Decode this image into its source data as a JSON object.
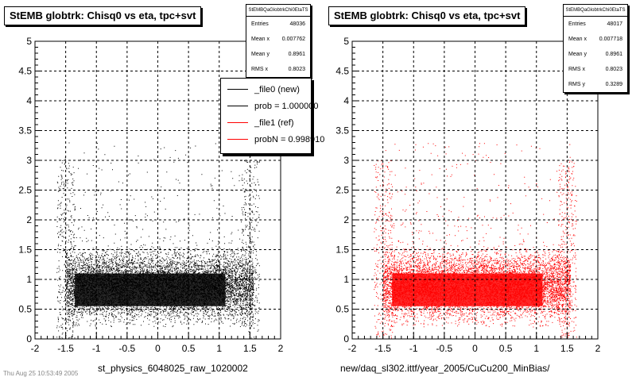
{
  "chart_data": [
    {
      "type": "scatter",
      "title": "StEMB globtrk: Chisq0 vs eta, tpc+svt",
      "xlabel": "st_physics_6048025_raw_1020002",
      "ylabel": "",
      "xlim": [
        -2,
        2
      ],
      "ylim": [
        0,
        5
      ],
      "xticks": [
        "-2",
        "-1.5",
        "-1",
        "-0.5",
        "0",
        "0.5",
        "1",
        "1.5",
        "2"
      ],
      "yticks": [
        "0",
        "0.5",
        "1",
        "1.5",
        "2",
        "2.5",
        "3",
        "3.5",
        "4",
        "4.5",
        "5"
      ],
      "grid": true,
      "marker_color": "#000000",
      "distribution": {
        "eta_core": [
          -1.5,
          1.55
        ],
        "chisq_dense": [
          0.35,
          1.45
        ],
        "chisq_mean": 0.8961
      },
      "stats": {
        "name": "StEMBQaGlobtrkChi0EtaTS",
        "rows": [
          {
            "label": "Entries",
            "value": "48036"
          },
          {
            "label": "Mean x",
            "value": "0.007762"
          },
          {
            "label": "Mean y",
            "value": "0.8961"
          },
          {
            "label": "RMS x",
            "value": "0.8023"
          }
        ]
      },
      "legend": {
        "position": "top-right",
        "entries": [
          {
            "label": "_file0 (new)",
            "color": "#000000"
          },
          {
            "label": "prob = 1.000000",
            "color": "#000000"
          },
          {
            "label": "_file1 (ref)",
            "color": "#ff0000"
          },
          {
            "label": "probN = 0.998910",
            "color": "#ff0000"
          }
        ]
      }
    },
    {
      "type": "scatter",
      "title": "StEMB globtrk: Chisq0 vs eta, tpc+svt",
      "xlabel": "new/daq_sl302.ittf/year_2005/CuCu200_MinBias/",
      "ylabel": "",
      "xlim": [
        -2,
        2
      ],
      "ylim": [
        0,
        5
      ],
      "xticks": [
        "-2",
        "-1.5",
        "-1",
        "-0.5",
        "0",
        "0.5",
        "1",
        "1.5",
        "2"
      ],
      "yticks": [
        "0",
        "0.5",
        "1",
        "1.5",
        "2",
        "2.5",
        "3",
        "3.5",
        "4",
        "4.5",
        "5"
      ],
      "grid": true,
      "marker_color": "#ff0000",
      "distribution": {
        "eta_core": [
          -1.5,
          1.55
        ],
        "chisq_dense": [
          0.35,
          1.45
        ],
        "chisq_mean": 0.8961
      },
      "stats": {
        "name": "StEMBQaGlobtrkChi0EtaTS",
        "rows": [
          {
            "label": "Entries",
            "value": "48017"
          },
          {
            "label": "Mean x",
            "value": "0.007718"
          },
          {
            "label": "Mean y",
            "value": "0.8961"
          },
          {
            "label": "RMS x",
            "value": "0.8023"
          },
          {
            "label": "RMS y",
            "value": "0.3289"
          }
        ]
      }
    }
  ],
  "footer": "Thu Aug 25 10:53:49 2005"
}
